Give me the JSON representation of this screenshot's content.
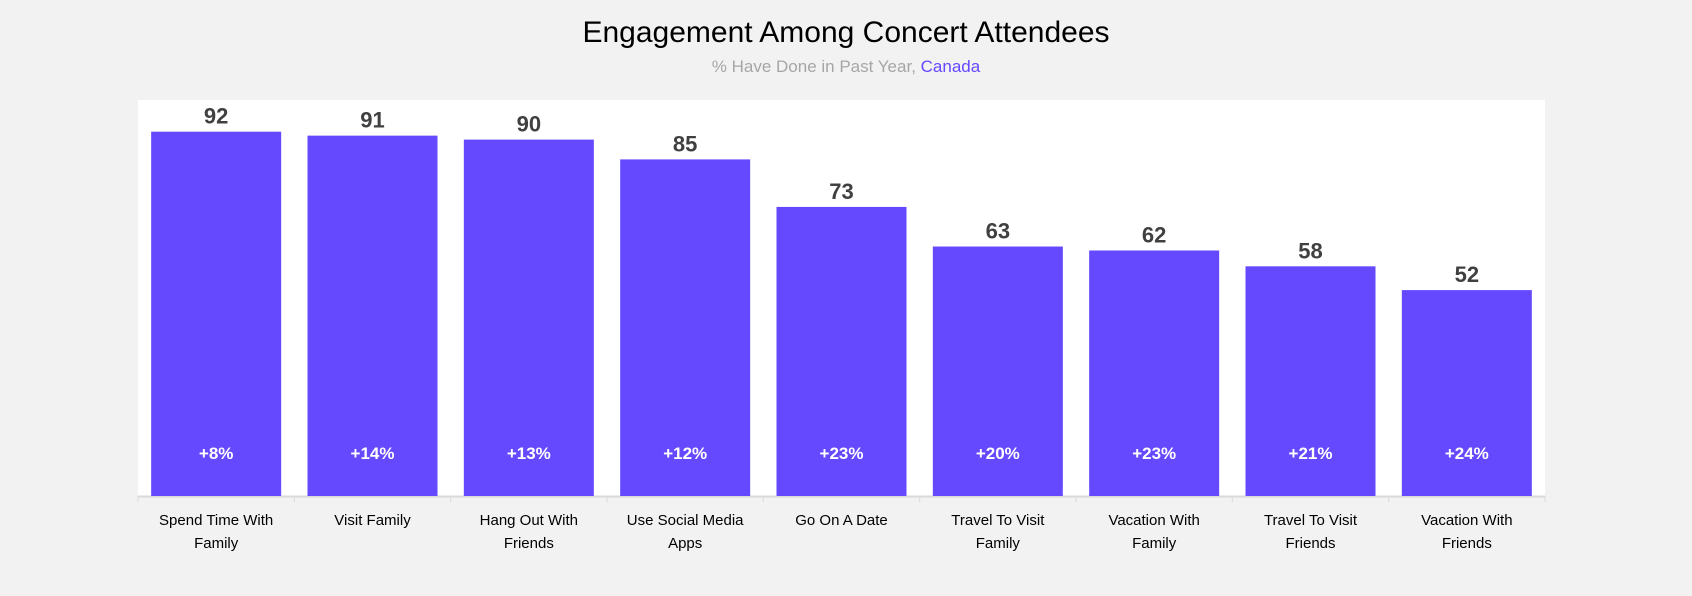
{
  "chart_data": {
    "type": "bar",
    "title": "Engagement Among Concert Attendees",
    "subtitle": "% Have Done in Past Year, ",
    "subtitle_highlight": "Canada",
    "categories": [
      [
        "Spend Time With",
        "Family"
      ],
      [
        "Visit Family"
      ],
      [
        "Hang Out With",
        "Friends"
      ],
      [
        "Use Social Media",
        "Apps"
      ],
      [
        "Go On A Date"
      ],
      [
        "Travel To Visit",
        "Family"
      ],
      [
        "Vacation With",
        "Family"
      ],
      [
        "Travel To Visit",
        "Friends"
      ],
      [
        "Vacation With",
        "Friends"
      ]
    ],
    "values": [
      92,
      91,
      90,
      85,
      73,
      63,
      62,
      58,
      52
    ],
    "deltas": [
      "+8%",
      "+14%",
      "+13%",
      "+12%",
      "+23%",
      "+20%",
      "+23%",
      "+21%",
      "+24%"
    ],
    "xlabel": "",
    "ylabel": "",
    "ylim": [
      0,
      100
    ],
    "grid": false,
    "legend": "none",
    "colors": {
      "bar": "#6549fe",
      "value_label": "#404040",
      "highlight": "#6549fe",
      "subtitle": "#a6a6a6"
    }
  }
}
